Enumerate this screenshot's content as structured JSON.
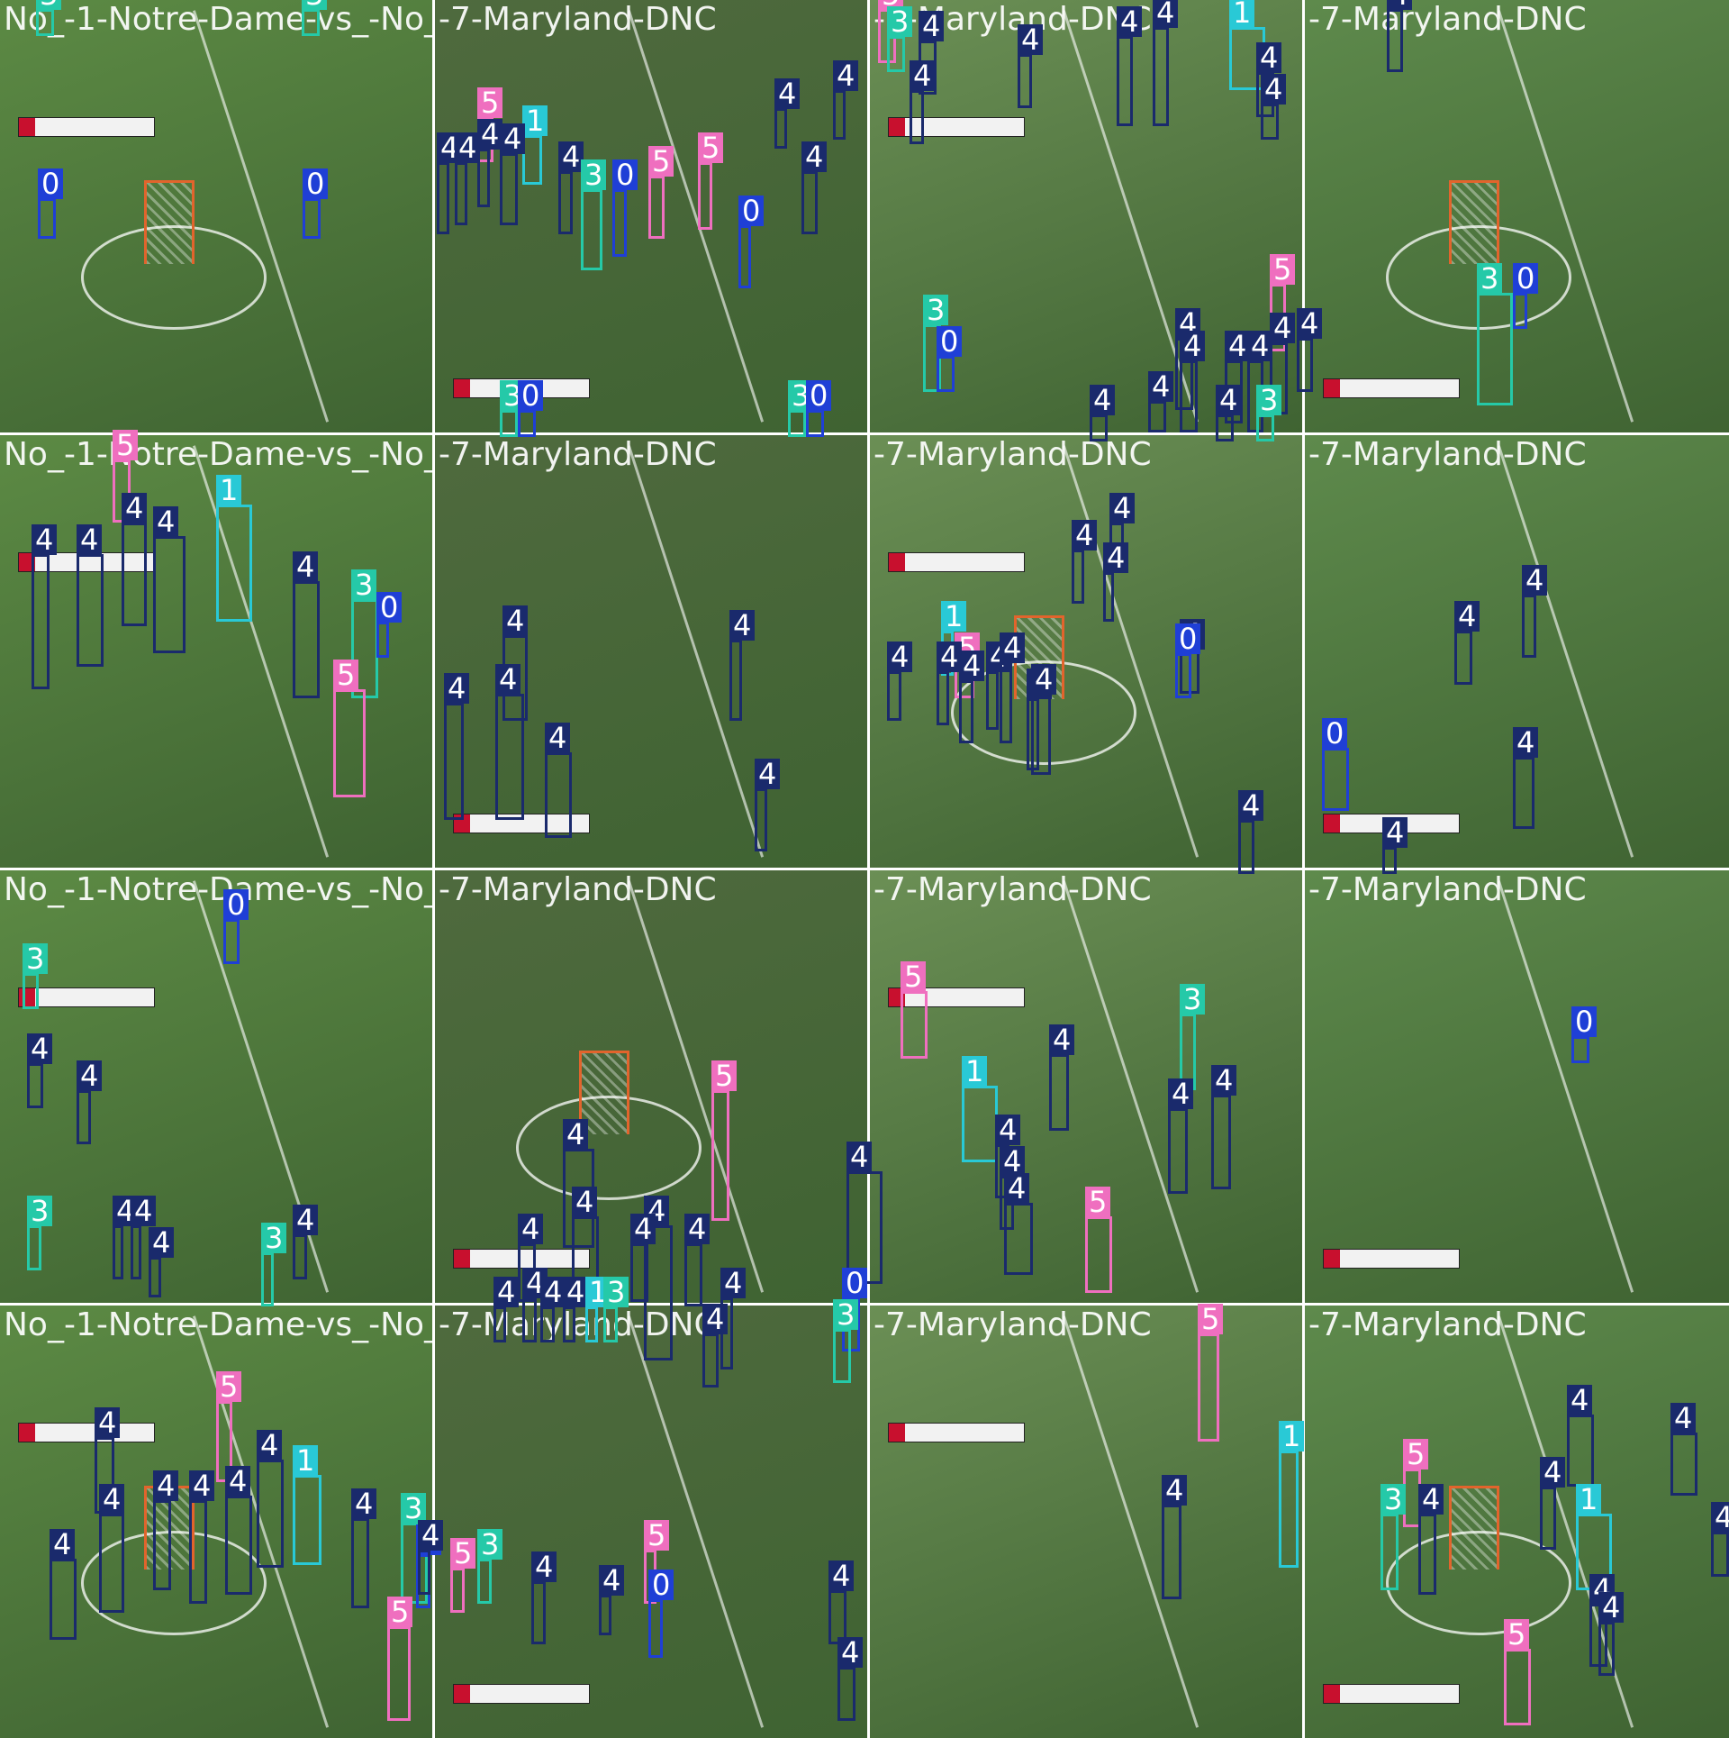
{
  "mosaic": {
    "title_text": "No_-1-Notre-Dame-vs_-No_-7-Maryland-DNC",
    "tiles": [
      {
        "title": "No_-1-Notre-Dame-vs_-No_",
        "labels": [
          "3",
          "3",
          "0",
          "0"
        ]
      },
      {
        "title": "-7-Maryland-DNC",
        "labels": [
          "5",
          "1",
          "4",
          "4",
          "4",
          "4",
          "4",
          "3",
          "0",
          "5",
          "5",
          "0",
          "4",
          "4",
          "4",
          "3",
          "0",
          "3",
          "0"
        ]
      },
      {
        "title": "-7-Maryland-DNC",
        "labels": [
          "5",
          "3",
          "4",
          "4",
          "4",
          "4",
          "4",
          "1",
          "4",
          "4",
          "3",
          "0",
          "5",
          "4",
          "4",
          "4",
          "4",
          "4",
          "4",
          "4",
          "4",
          "4",
          "3"
        ]
      },
      {
        "title": "-7-Maryland-DNC",
        "labels": [
          "4",
          "3",
          "0"
        ]
      },
      {
        "title": "No_-1-Notre-Dame-vs_-No_",
        "labels": [
          "5",
          "4",
          "4",
          "4",
          "4",
          "1",
          "4",
          "3",
          "0",
          "5"
        ]
      },
      {
        "title": "-7-Maryland-DNC",
        "labels": [
          "4",
          "4",
          "4",
          "4",
          "4",
          "4"
        ]
      },
      {
        "title": "-7-Maryland-DNC",
        "labels": [
          "4",
          "4",
          "4",
          "4",
          "4",
          "1",
          "5",
          "4",
          "4",
          "4",
          "4",
          "4",
          "4",
          "4",
          "0"
        ]
      },
      {
        "title": "-7-Maryland-DNC",
        "labels": [
          "4",
          "4",
          "0",
          "4",
          "4"
        ]
      },
      {
        "title": "No_-1-Notre-Dame-vs_-No_",
        "labels": [
          "0",
          "3",
          "4",
          "4",
          "3",
          "4",
          "4",
          "4",
          "3",
          "4"
        ]
      },
      {
        "title": "-7-Maryland-DNC",
        "labels": [
          "5",
          "4",
          "4",
          "4",
          "4",
          "4",
          "4",
          "4",
          "4",
          "4",
          "4",
          "4",
          "4",
          "1",
          "3",
          "0",
          "4"
        ]
      },
      {
        "title": "-7-Maryland-DNC",
        "labels": [
          "5",
          "3",
          "1",
          "4",
          "4",
          "4",
          "4",
          "4",
          "4",
          "5"
        ]
      },
      {
        "title": "-7-Maryland-DNC",
        "labels": [
          "0"
        ]
      },
      {
        "title": "No_-1-Notre-Dame-vs_-No_",
        "labels": [
          "5",
          "4",
          "4",
          "4",
          "4",
          "4",
          "4",
          "4",
          "1",
          "4",
          "3",
          "0",
          "5",
          "4"
        ]
      },
      {
        "title": "-7-Maryland-DNC",
        "labels": [
          "5",
          "3",
          "4",
          "4",
          "5",
          "0",
          "4",
          "3",
          "4",
          "4"
        ]
      },
      {
        "title": "-7-Maryland-DNC",
        "labels": [
          "5",
          "1",
          "4"
        ]
      },
      {
        "title": "-7-Maryland-DNC",
        "labels": [
          "5",
          "3",
          "4",
          "4",
          "4",
          "1",
          "4",
          "4",
          "4",
          "5",
          "4"
        ]
      }
    ]
  },
  "class_colors": {
    "0": "#1f3fd6",
    "1": "#29c9d6",
    "3": "#25c9a8",
    "4": "#1a2a6c",
    "5": "#ef6fbf"
  }
}
